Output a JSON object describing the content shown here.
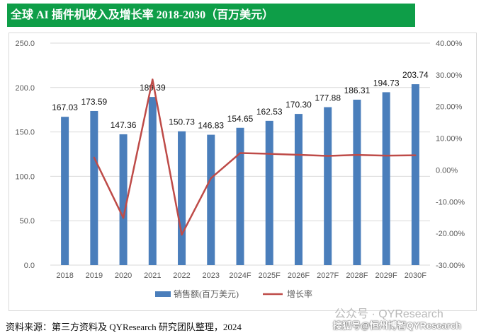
{
  "title": "全球 AI 插件机收入及增长率 2018-2030（百万美元）",
  "source": "资料来源：第三方资料及 QYResearch 研究团队整理，2024",
  "watermark": {
    "line1": "公众号 · QYResearch",
    "line2": "搜狐号@恒州博智QYResearch"
  },
  "colors": {
    "banner": "#0e9e48",
    "bar": "#4a7ebb",
    "line": "#be4b48"
  },
  "chart_data": {
    "type": "bar",
    "categories": [
      "2018",
      "2019",
      "2020",
      "2021",
      "2022",
      "2023",
      "2024F",
      "2025F",
      "2026F",
      "2027F",
      "2028F",
      "2029F",
      "2030F"
    ],
    "series": [
      {
        "name": "销售额(百万美元)",
        "type": "bar",
        "axis": "left",
        "values": [
          167.03,
          173.59,
          147.36,
          189.39,
          150.73,
          146.83,
          154.65,
          162.53,
          170.3,
          177.88,
          186.31,
          194.73,
          203.74
        ],
        "labels": [
          "167.03",
          "173.59",
          "147.36",
          "189.39",
          "150.73",
          "146.83",
          "154.65",
          "162.53",
          "170.30",
          "177.88",
          "186.31",
          "194.73",
          "203.74"
        ]
      },
      {
        "name": "增长率",
        "type": "line",
        "axis": "right",
        "values": [
          null,
          3.93,
          -15.11,
          28.52,
          -20.41,
          -2.59,
          5.33,
          5.1,
          4.78,
          4.45,
          4.74,
          4.52,
          4.63
        ]
      }
    ],
    "left_axis": {
      "ylim": [
        0,
        250
      ],
      "ticks": [
        "0.0",
        "50.0",
        "100.0",
        "150.0",
        "200.0",
        "250.0"
      ],
      "tick_values": [
        0,
        50,
        100,
        150,
        200,
        250
      ]
    },
    "right_axis": {
      "ylim": [
        -30,
        40
      ],
      "ticks": [
        "-30.00%",
        "-20.00%",
        "-10.00%",
        "0.00%",
        "10.00%",
        "20.00%",
        "30.00%",
        "40.00%"
      ],
      "tick_values": [
        -30,
        -20,
        -10,
        0,
        10,
        20,
        30,
        40
      ]
    },
    "grid": true,
    "legend_position": "bottom"
  }
}
